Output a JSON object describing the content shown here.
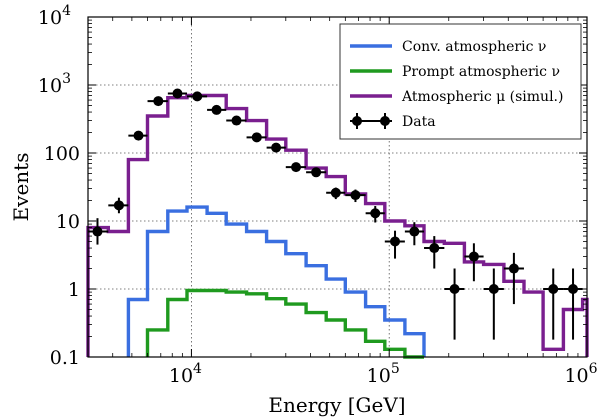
{
  "chart_data": {
    "type": "line",
    "xlabel": "Energy [GeV]",
    "ylabel": "Events",
    "xscale": "log",
    "yscale": "log",
    "xlim": [
      3000,
      1000000
    ],
    "ylim": [
      0.1,
      10000
    ],
    "grid": true,
    "legend_position": "top-right",
    "x_ticks": [
      {
        "value": 10000,
        "base": "10",
        "exp": "4"
      },
      {
        "value": 100000,
        "base": "10",
        "exp": "5"
      },
      {
        "value": 1000000,
        "base": "10",
        "exp": "6"
      }
    ],
    "y_ticks": [
      {
        "value": 0.1,
        "label": "0.1",
        "exp": ""
      },
      {
        "value": 1,
        "label": "1",
        "exp": ""
      },
      {
        "value": 10,
        "label": "10",
        "exp": ""
      },
      {
        "value": 100,
        "label": "100",
        "exp": ""
      },
      {
        "value": 1000,
        "label": "10",
        "exp": "3"
      },
      {
        "value": 10000,
        "label": "10",
        "exp": "4"
      }
    ],
    "bin_edges": [
      3000,
      3800,
      4800,
      6000,
      7600,
      9500,
      12000,
      15000,
      19000,
      24000,
      30000,
      38000,
      48000,
      60000,
      76000,
      95000,
      120000,
      150000,
      190000,
      240000,
      300000,
      380000,
      480000,
      600000,
      760000,
      950000,
      1000000
    ],
    "series": [
      {
        "name": "Conv. atmospheric ν",
        "color": "#3a6fe0",
        "kind": "step",
        "values": [
          null,
          null,
          0.7,
          7,
          14,
          16,
          13,
          9,
          7,
          5,
          3.3,
          2.2,
          1.4,
          0.9,
          0.55,
          0.35,
          0.22,
          null,
          null,
          null,
          null,
          null,
          null,
          null,
          null,
          null
        ]
      },
      {
        "name": "Prompt atmospheric ν",
        "color": "#1f9a1f",
        "kind": "step",
        "values": [
          null,
          null,
          null,
          0.25,
          0.7,
          0.95,
          0.95,
          0.9,
          0.85,
          0.72,
          0.6,
          0.45,
          0.35,
          0.25,
          0.17,
          0.13,
          0.1,
          null,
          null,
          null,
          null,
          null,
          null,
          null,
          null,
          null
        ]
      },
      {
        "name": "Atmospheric μ (simul.)",
        "color": "#7a1f8f",
        "kind": "step",
        "values": [
          8,
          7,
          80,
          350,
          650,
          700,
          700,
          450,
          300,
          160,
          110,
          60,
          45,
          25,
          18,
          10,
          8.5,
          5,
          4.7,
          2.5,
          2.3,
          1.3,
          0.9,
          0.13,
          0.5,
          0.7
        ]
      },
      {
        "name": "Data",
        "color": "#000000",
        "kind": "errorbar",
        "points": [
          {
            "x": 3350,
            "y": 7,
            "xerr": [
              3000,
              3800
            ],
            "yerr": [
              4.5,
              11
            ]
          },
          {
            "x": 4300,
            "y": 17,
            "xerr": [
              3800,
              4800
            ],
            "yerr": [
              13,
              22
            ]
          },
          {
            "x": 5400,
            "y": 180,
            "xerr": [
              4800,
              6000
            ],
            "yerr": [
              165,
              197
            ]
          },
          {
            "x": 6800,
            "y": 580,
            "xerr": [
              6000,
              7600
            ],
            "yerr": [
              555,
              605
            ]
          },
          {
            "x": 8500,
            "y": 750,
            "xerr": [
              7600,
              9500
            ],
            "yerr": [
              722,
              778
            ]
          },
          {
            "x": 10700,
            "y": 680,
            "xerr": [
              9500,
              12000
            ],
            "yerr": [
              654,
              706
            ]
          },
          {
            "x": 13400,
            "y": 430,
            "xerr": [
              12000,
              15000
            ],
            "yerr": [
              409,
              451
            ]
          },
          {
            "x": 16900,
            "y": 300,
            "xerr": [
              15000,
              19000
            ],
            "yerr": [
              283,
              317
            ]
          },
          {
            "x": 21400,
            "y": 170,
            "xerr": [
              19000,
              24000
            ],
            "yerr": [
              157,
              183
            ]
          },
          {
            "x": 26800,
            "y": 120,
            "xerr": [
              24000,
              30000
            ],
            "yerr": [
              109,
              131
            ]
          },
          {
            "x": 33800,
            "y": 62,
            "xerr": [
              30000,
              38000
            ],
            "yerr": [
              54,
              70
            ]
          },
          {
            "x": 42700,
            "y": 52,
            "xerr": [
              38000,
              48000
            ],
            "yerr": [
              45,
              59
            ]
          },
          {
            "x": 53700,
            "y": 26,
            "xerr": [
              48000,
              60000
            ],
            "yerr": [
              21,
              31
            ]
          },
          {
            "x": 67500,
            "y": 24,
            "xerr": [
              60000,
              76000
            ],
            "yerr": [
              19,
              29
            ]
          },
          {
            "x": 85000,
            "y": 13,
            "xerr": [
              76000,
              95000
            ],
            "yerr": [
              9.5,
              16.6
            ]
          },
          {
            "x": 107000,
            "y": 5,
            "xerr": [
              95000,
              120000
            ],
            "yerr": [
              2.8,
              7.2
            ]
          },
          {
            "x": 134000,
            "y": 7,
            "xerr": [
              120000,
              150000
            ],
            "yerr": [
              4.4,
              9.6
            ]
          },
          {
            "x": 169000,
            "y": 4,
            "xerr": [
              150000,
              190000
            ],
            "yerr": [
              2.0,
              6.0
            ]
          },
          {
            "x": 214000,
            "y": 1,
            "xerr": [
              190000,
              240000
            ],
            "yerr": [
              0.18,
              2.0
            ]
          },
          {
            "x": 268000,
            "y": 3,
            "xerr": [
              240000,
              300000
            ],
            "yerr": [
              1.3,
              4.7
            ]
          },
          {
            "x": 338000,
            "y": 1,
            "xerr": [
              300000,
              380000
            ],
            "yerr": [
              0.18,
              2.0
            ]
          },
          {
            "x": 427000,
            "y": 2,
            "xerr": [
              380000,
              480000
            ],
            "yerr": [
              0.6,
              3.4
            ]
          },
          {
            "x": 675000,
            "y": 1,
            "xerr": [
              600000,
              760000
            ],
            "yerr": [
              0.18,
              2.0
            ]
          },
          {
            "x": 850000,
            "y": 1,
            "xerr": [
              760000,
              950000
            ],
            "yerr": [
              0.18,
              2.0
            ]
          }
        ]
      }
    ]
  }
}
